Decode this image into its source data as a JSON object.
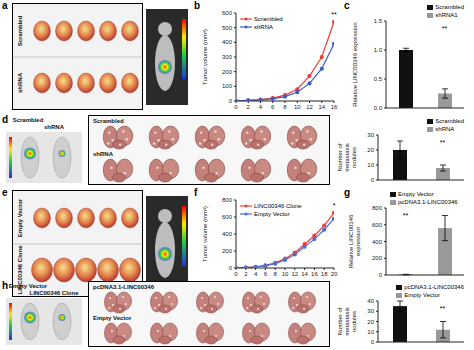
{
  "chart_data": [
    {
      "type": "line",
      "panel": "b",
      "y_label": "Tumor volume (mm³)",
      "x": [
        0,
        2,
        4,
        6,
        8,
        10,
        12,
        14,
        16
      ],
      "series": [
        {
          "name": "Scrambled",
          "color": "#e8413a",
          "marker": "circle",
          "values": [
            0,
            5,
            10,
            20,
            40,
            80,
            170,
            300,
            540
          ]
        },
        {
          "name": "shRNA",
          "color": "#3d5fc4",
          "marker": "circle",
          "values": [
            0,
            5,
            8,
            15,
            30,
            60,
            120,
            220,
            390
          ]
        }
      ],
      "xlim": [
        0,
        16
      ],
      "xticks": [
        0,
        2,
        4,
        6,
        8,
        10,
        12,
        14,
        16
      ],
      "ylim": [
        0,
        600
      ],
      "yticks": [
        0,
        100,
        200,
        300,
        400,
        500,
        600
      ],
      "legend": "top-left",
      "annotations": [
        "**"
      ]
    },
    {
      "type": "bar",
      "panel": "c",
      "y_label": "Relative LINC00346 expression",
      "categories": [
        "Scrambled",
        "shRNA1"
      ],
      "values": [
        1.0,
        0.25
      ],
      "errors": [
        0.03,
        0.08
      ],
      "colors": [
        "#111111",
        "#999999"
      ],
      "ylim": [
        0,
        1.5
      ],
      "yticks": [
        {
          "value": 0,
          "label": "0.0"
        },
        {
          "value": 0.5,
          "label": "0.5"
        },
        {
          "value": 1,
          "label": "1.0"
        },
        {
          "value": 1.5,
          "label": "1.5"
        }
      ],
      "legend": "top-right",
      "tick_labels": "y",
      "annotations": [
        "**"
      ]
    },
    {
      "type": "bar",
      "y_label": "Number of metastasis nodules",
      "categories": [
        "Scrambled",
        "shRNA"
      ],
      "values": [
        20,
        8
      ],
      "errors": [
        6,
        2
      ],
      "colors": [
        "#111111",
        "#999999"
      ],
      "ylim": [
        0,
        30
      ],
      "yticks": [
        0,
        10,
        20,
        30
      ],
      "legend": "top-right",
      "tick_labels": "y",
      "annotations": [
        "**"
      ]
    },
    {
      "type": "line",
      "panel": "f",
      "y_label": "Tumor volume (mm³)",
      "x": [
        0,
        2,
        4,
        6,
        8,
        10,
        12,
        14,
        16,
        18,
        20
      ],
      "series": [
        {
          "name": "LINC00346 Clone",
          "color": "#e8413a",
          "marker": "circle",
          "values": [
            0,
            5,
            15,
            30,
            60,
            110,
            180,
            280,
            380,
            500,
            650
          ]
        },
        {
          "name": "Empty Vector",
          "color": "#4a6fd0",
          "marker": "circle",
          "values": [
            0,
            5,
            12,
            25,
            50,
            95,
            160,
            250,
            340,
            450,
            580
          ]
        }
      ],
      "xlim": [
        0,
        20
      ],
      "xticks": [
        0,
        2,
        4,
        6,
        8,
        10,
        12,
        14,
        16,
        18,
        20
      ],
      "ylim": [
        0,
        800
      ],
      "yticks": [
        0,
        200,
        400,
        600,
        800
      ],
      "legend": "top-left",
      "annotations": [
        "*"
      ]
    },
    {
      "type": "bar",
      "panel": "g",
      "y_label": "Relative LINC00346 expression",
      "categories": [
        "Empty Vector",
        "pcDNA3.1-LINC00346"
      ],
      "values": [
        5,
        560
      ],
      "errors": [
        3,
        150
      ],
      "colors": [
        "#111111",
        "#999999"
      ],
      "ylim": [
        0,
        800
      ],
      "yticks": [
        0,
        200,
        400,
        600,
        800
      ],
      "legend": "top-left",
      "tick_labels": "y",
      "annotations": [
        "**"
      ]
    },
    {
      "type": "bar",
      "y_label": "Number of metastasis nodules",
      "categories": [
        "pcDNA3.1-LINC00346",
        "Empty Vector"
      ],
      "values": [
        35,
        12
      ],
      "errors": [
        5,
        8
      ],
      "colors": [
        "#111111",
        "#999999"
      ],
      "ylim": [
        0,
        40
      ],
      "yticks": [
        0,
        10,
        20,
        30,
        40
      ],
      "legend": "top-right",
      "tick_labels": "y",
      "annotations": [
        "**"
      ]
    }
  ],
  "photo_panels": [
    {
      "panel": "a",
      "row_labels": [
        "Scrambled",
        "shRNA"
      ]
    },
    {
      "panel": "d",
      "mouse_labels": [
        "Scrambled",
        "shRNA"
      ],
      "lung_labels": [
        "Scrambled",
        "shRNA"
      ]
    },
    {
      "panel": "e",
      "row_labels": [
        "Empty Vector",
        "LINC00346 Clone"
      ]
    },
    {
      "panel": "h",
      "mouse_labels": [
        "Empty Vector",
        "LINC00346 Clone"
      ],
      "lung_labels": [
        "pcDNA3.1-LINC00346",
        "Empty Vector"
      ]
    }
  ]
}
